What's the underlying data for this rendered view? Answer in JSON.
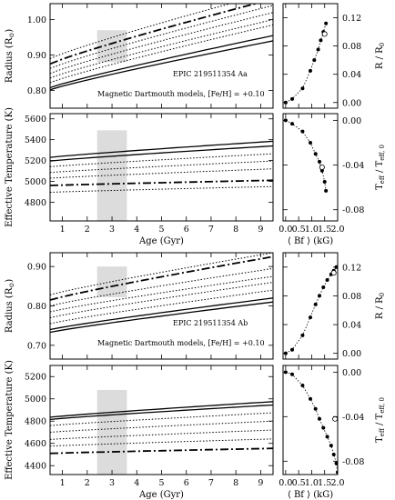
{
  "chart_data": [
    {
      "type": "line",
      "ylabel": "Radius (R",
      "ylabel_sun": "⊙",
      "ylabel_close": ")",
      "xlim": [
        0.5,
        9.5
      ],
      "ylim": [
        0.75,
        1.045
      ],
      "yticks": [
        "0.80",
        "0.90",
        "1.00"
      ],
      "ytick_values": [
        0.8,
        0.9,
        1.0
      ],
      "shaded_box": {
        "x": [
          2.4,
          3.6
        ],
        "y": [
          0.88,
          0.97
        ]
      },
      "annotations": [
        "EPIC 219511354 Aa",
        "Magnetic Dartmouth models, [Fe/H] = +0.10"
      ],
      "series": [
        {
          "style": "solid",
          "x": [
            0.5,
            9.5
          ],
          "y0": 0.802,
          "y1": 0.94
        },
        {
          "style": "solid",
          "x": [
            0.5,
            9.5
          ],
          "y0": 0.808,
          "y1": 0.955
        },
        {
          "style": "dotted",
          "x": [
            0.5,
            9.5
          ],
          "y0": 0.822,
          "y1": 0.985
        },
        {
          "style": "dotted",
          "x": [
            0.5,
            9.5
          ],
          "y0": 0.835,
          "y1": 1.0
        },
        {
          "style": "dotted",
          "x": [
            0.5,
            9.5
          ],
          "y0": 0.848,
          "y1": 1.02
        },
        {
          "style": "dotted",
          "x": [
            0.5,
            9.5
          ],
          "y0": 0.862,
          "y1": 1.04
        },
        {
          "style": "dashdot",
          "x": [
            0.5,
            9.5
          ],
          "y0": 0.875,
          "y1": 1.058
        },
        {
          "style": "dotted",
          "x": [
            0.5,
            9.5
          ],
          "y0": 0.89,
          "y1": 1.078
        }
      ]
    },
    {
      "type": "scatter",
      "ylabel": "R / R",
      "ylabel_sub": "0",
      "xlim": [
        -0.1,
        2.0
      ],
      "ylim": [
        -0.008,
        0.14
      ],
      "yticks": [
        "0.00",
        "0.04",
        "0.08",
        "0.12"
      ],
      "ytick_values": [
        0.0,
        0.04,
        0.08,
        0.12
      ],
      "points": [
        [
          0.0,
          0.0
        ],
        [
          0.25,
          0.005
        ],
        [
          0.65,
          0.02
        ],
        [
          0.95,
          0.045
        ],
        [
          1.1,
          0.06
        ],
        [
          1.25,
          0.075
        ],
        [
          1.35,
          0.088
        ],
        [
          1.45,
          0.1
        ],
        [
          1.55,
          0.112
        ]
      ],
      "open_point": [
        1.5,
        0.097
      ]
    },
    {
      "type": "line",
      "ylabel": "Effective Temperature (K)",
      "xlabel": "Age (Gyr)",
      "xlim": [
        0.5,
        9.5
      ],
      "ylim": [
        4620,
        5650
      ],
      "xticks": [
        "1",
        "2",
        "3",
        "4",
        "5",
        "6",
        "7",
        "8",
        "9"
      ],
      "xtick_values": [
        1,
        2,
        3,
        4,
        5,
        6,
        7,
        8,
        9
      ],
      "yticks": [
        "4800",
        "5000",
        "5200",
        "5400",
        "5600"
      ],
      "ytick_values": [
        4800,
        5000,
        5200,
        5400,
        5600
      ],
      "shaded_box": {
        "x": [
          2.4,
          3.6
        ],
        "y": [
          4620,
          5490
        ]
      },
      "series": [
        {
          "style": "solid",
          "x": [
            0.5,
            9.5
          ],
          "y0": 5230,
          "y1": 5385
        },
        {
          "style": "solid",
          "x": [
            0.5,
            9.5
          ],
          "y0": 5195,
          "y1": 5340
        },
        {
          "style": "dotted",
          "x": [
            0.5,
            9.5
          ],
          "y0": 5140,
          "y1": 5265
        },
        {
          "style": "dotted",
          "x": [
            0.5,
            9.5
          ],
          "y0": 5085,
          "y1": 5195
        },
        {
          "style": "dotted",
          "x": [
            0.5,
            9.5
          ],
          "y0": 5030,
          "y1": 5120
        },
        {
          "style": "dashdot",
          "x": [
            0.5,
            9.5
          ],
          "y0": 4960,
          "y1": 5010
        },
        {
          "style": "dotted",
          "x": [
            0.5,
            9.5
          ],
          "y0": 4895,
          "y1": 4950
        }
      ]
    },
    {
      "type": "scatter",
      "ylabel": "T",
      "ylabel_sub": "eff",
      "ylabel_mid": " / T",
      "ylabel_sub2": "eff, 0",
      "xlabel": "⟨ Bf ⟩  (kG)",
      "xlim": [
        -0.1,
        2.0
      ],
      "ylim": [
        -0.09,
        0.006
      ],
      "xticks": [
        "0.0",
        "0.5",
        "1.0",
        "1.5",
        "2.0"
      ],
      "xtick_values": [
        0.0,
        0.5,
        1.0,
        1.5,
        2.0
      ],
      "yticks": [
        "0.00",
        "-0.04",
        "-0.08"
      ],
      "ytick_values": [
        0.0,
        -0.04,
        -0.08
      ],
      "points": [
        [
          0.0,
          0.0
        ],
        [
          0.25,
          -0.003
        ],
        [
          0.65,
          -0.01
        ],
        [
          0.95,
          -0.02
        ],
        [
          1.15,
          -0.03
        ],
        [
          1.3,
          -0.037
        ],
        [
          1.4,
          -0.045
        ],
        [
          1.5,
          -0.055
        ],
        [
          1.55,
          -0.063
        ]
      ],
      "open_point": [
        1.4,
        -0.042
      ]
    },
    {
      "type": "line",
      "ylabel": "Radius (R",
      "ylabel_sun": "⊙",
      "ylabel_close": ")",
      "xlim": [
        0.5,
        9.5
      ],
      "ylim": [
        0.665,
        0.935
      ],
      "yticks": [
        "0.70",
        "0.80",
        "0.90"
      ],
      "ytick_values": [
        0.7,
        0.8,
        0.9
      ],
      "shaded_box": {
        "x": [
          2.4,
          3.6
        ],
        "y": [
          0.822,
          0.9
        ]
      },
      "annotations": [
        "EPIC 219511354 Ab",
        "Magnetic Dartmouth models, [Fe/H] = +0.10"
      ],
      "series": [
        {
          "style": "solid",
          "x": [
            0.5,
            9.5
          ],
          "y0": 0.733,
          "y1": 0.81
        },
        {
          "style": "solid",
          "x": [
            0.5,
            9.5
          ],
          "y0": 0.74,
          "y1": 0.82
        },
        {
          "style": "dotted",
          "x": [
            0.5,
            9.5
          ],
          "y0": 0.755,
          "y1": 0.84
        },
        {
          "style": "dotted",
          "x": [
            0.5,
            9.5
          ],
          "y0": 0.77,
          "y1": 0.86
        },
        {
          "style": "dotted",
          "x": [
            0.5,
            9.5
          ],
          "y0": 0.785,
          "y1": 0.875
        },
        {
          "style": "dotted",
          "x": [
            0.5,
            9.5
          ],
          "y0": 0.8,
          "y1": 0.895
        },
        {
          "style": "dashdot",
          "x": [
            0.5,
            9.5
          ],
          "y0": 0.815,
          "y1": 0.925
        },
        {
          "style": "dotted",
          "x": [
            0.5,
            9.5
          ],
          "y0": 0.828,
          "y1": 0.935
        }
      ]
    },
    {
      "type": "scatter",
      "ylabel": "R / R",
      "ylabel_sub": "0",
      "xlim": [
        -0.1,
        2.0
      ],
      "ylim": [
        -0.008,
        0.14
      ],
      "yticks": [
        "0.00",
        "0.04",
        "0.08",
        "0.12"
      ],
      "ytick_values": [
        0.0,
        0.04,
        0.08,
        0.12
      ],
      "points": [
        [
          0.0,
          0.0
        ],
        [
          0.25,
          0.005
        ],
        [
          0.65,
          0.025
        ],
        [
          0.95,
          0.05
        ],
        [
          1.15,
          0.068
        ],
        [
          1.3,
          0.08
        ],
        [
          1.45,
          0.092
        ],
        [
          1.6,
          0.102
        ],
        [
          1.75,
          0.11
        ],
        [
          1.85,
          0.115
        ],
        [
          1.95,
          0.12
        ]
      ],
      "open_point": [
        1.85,
        0.112
      ]
    },
    {
      "type": "line",
      "ylabel": "Effective Temperature (K)",
      "xlabel": "Age (Gyr)",
      "xlim": [
        0.5,
        9.5
      ],
      "ylim": [
        4320,
        5300
      ],
      "xticks": [
        "1",
        "2",
        "3",
        "4",
        "5",
        "6",
        "7",
        "8",
        "9"
      ],
      "xtick_values": [
        1,
        2,
        3,
        4,
        5,
        6,
        7,
        8,
        9
      ],
      "yticks": [
        "4400",
        "4600",
        "4800",
        "5000",
        "5200"
      ],
      "ytick_values": [
        4400,
        4600,
        4800,
        5000,
        5200
      ],
      "shaded_box": {
        "x": [
          2.4,
          3.6
        ],
        "y": [
          4320,
          5080
        ]
      },
      "series": [
        {
          "style": "solid",
          "x": [
            0.5,
            9.5
          ],
          "y0": 4835,
          "y1": 4975
        },
        {
          "style": "solid",
          "x": [
            0.5,
            9.5
          ],
          "y0": 4815,
          "y1": 4945
        },
        {
          "style": "dotted",
          "x": [
            0.5,
            9.5
          ],
          "y0": 4760,
          "y1": 4875
        },
        {
          "style": "dotted",
          "x": [
            0.5,
            9.5
          ],
          "y0": 4700,
          "y1": 4800
        },
        {
          "style": "dotted",
          "x": [
            0.5,
            9.5
          ],
          "y0": 4635,
          "y1": 4720
        },
        {
          "style": "dotted",
          "x": [
            0.5,
            9.5
          ],
          "y0": 4575,
          "y1": 4640
        },
        {
          "style": "dashdot",
          "x": [
            0.5,
            9.5
          ],
          "y0": 4510,
          "y1": 4555
        }
      ]
    },
    {
      "type": "scatter",
      "ylabel": "T",
      "ylabel_sub": "eff",
      "ylabel_mid": " / T",
      "ylabel_sub2": "eff, 0",
      "xlabel": "⟨ Bf ⟩  (kG)",
      "xlim": [
        -0.1,
        2.0
      ],
      "ylim": [
        -0.092,
        0.006
      ],
      "xticks": [
        "0.0",
        "0.5",
        "1.0",
        "1.5",
        "2.0"
      ],
      "xtick_values": [
        0.0,
        0.5,
        1.0,
        1.5,
        2.0
      ],
      "yticks": [
        "0.00",
        "-0.04",
        "-0.08"
      ],
      "ytick_values": [
        0.0,
        -0.04,
        -0.08
      ],
      "points": [
        [
          0.0,
          0.0
        ],
        [
          0.25,
          -0.002
        ],
        [
          0.65,
          -0.012
        ],
        [
          0.95,
          -0.024
        ],
        [
          1.15,
          -0.033
        ],
        [
          1.3,
          -0.042
        ],
        [
          1.45,
          -0.05
        ],
        [
          1.6,
          -0.058
        ],
        [
          1.75,
          -0.066
        ],
        [
          1.85,
          -0.074
        ],
        [
          1.95,
          -0.082
        ],
        [
          2.0,
          -0.09
        ]
      ],
      "open_point": [
        1.9,
        -0.042
      ]
    }
  ]
}
